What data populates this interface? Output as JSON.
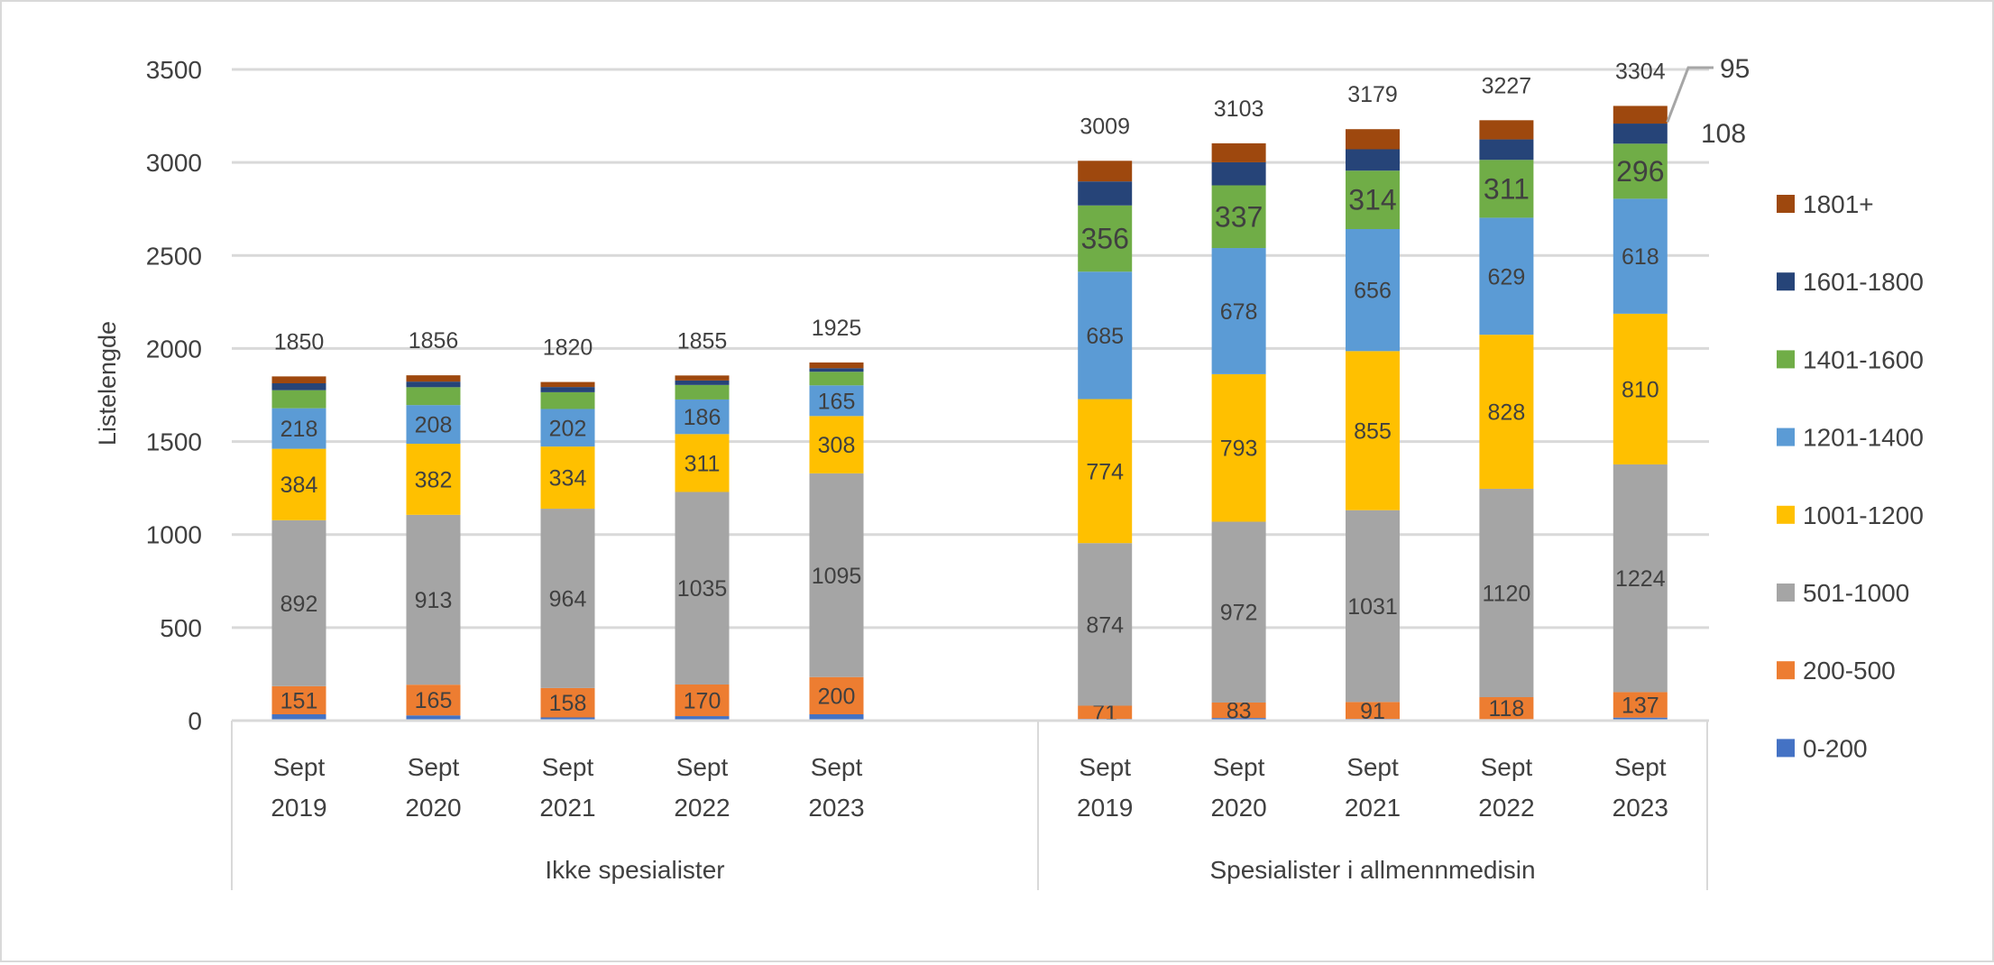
{
  "chart_data": {
    "type": "bar",
    "stacked": true,
    "title": "",
    "ylabel": "Listelengde",
    "xlabel": "",
    "ylim": [
      0,
      3500
    ],
    "yticks": [
      0,
      500,
      1000,
      1500,
      2000,
      2500,
      3000,
      3500
    ],
    "grid": true,
    "legend_position": "right",
    "groups": [
      {
        "label": "Ikke spesialister",
        "categories": [
          [
            "Sept",
            "2019"
          ],
          [
            "Sept",
            "2020"
          ],
          [
            "Sept",
            "2021"
          ],
          [
            "Sept",
            "2022"
          ],
          [
            "Sept",
            "2023"
          ]
        ],
        "totals": [
          1850,
          1856,
          1820,
          1855,
          1925
        ]
      },
      {
        "label": "Spesialister i allmennmedisin",
        "categories": [
          [
            "Sept",
            "2019"
          ],
          [
            "Sept",
            "2020"
          ],
          [
            "Sept",
            "2021"
          ],
          [
            "Sept",
            "2022"
          ],
          [
            "Sept",
            "2023"
          ]
        ],
        "totals": [
          3009,
          3103,
          3179,
          3227,
          3304
        ]
      }
    ],
    "series": [
      {
        "name": "0-200",
        "color": "#4472C4",
        "values": [
          [
            34,
            28,
            17,
            24,
            34
          ],
          [
            9,
            14,
            9,
            8,
            16
          ]
        ],
        "labels": [
          [
            null,
            null,
            null,
            null,
            null
          ],
          [
            null,
            null,
            null,
            null,
            null
          ]
        ]
      },
      {
        "name": "200-500",
        "color": "#ED7D31",
        "values": [
          [
            151,
            165,
            158,
            170,
            200
          ],
          [
            71,
            83,
            91,
            118,
            137
          ]
        ],
        "labels": [
          [
            "151",
            "165",
            "158",
            "170",
            "200"
          ],
          [
            "71",
            "83",
            "91",
            "118",
            "137"
          ]
        ]
      },
      {
        "name": "501-1000",
        "color": "#A5A5A5",
        "values": [
          [
            892,
            913,
            964,
            1035,
            1095
          ],
          [
            874,
            972,
            1031,
            1120,
            1224
          ]
        ],
        "labels": [
          [
            "892",
            "913",
            "964",
            "1035",
            "1095"
          ],
          [
            "874",
            "972",
            "1031",
            "1120",
            "1224"
          ]
        ]
      },
      {
        "name": "1001-1200",
        "color": "#FFC000",
        "values": [
          [
            384,
            382,
            334,
            311,
            308
          ],
          [
            774,
            793,
            855,
            828,
            810
          ]
        ],
        "labels": [
          [
            "384",
            "382",
            "334",
            "311",
            "308"
          ],
          [
            "774",
            "793",
            "855",
            "828",
            "810"
          ]
        ]
      },
      {
        "name": "1201-1400",
        "color": "#5B9BD5",
        "values": [
          [
            218,
            208,
            202,
            186,
            165
          ],
          [
            685,
            678,
            656,
            629,
            618
          ]
        ],
        "labels": [
          [
            "218",
            "208",
            "202",
            "186",
            "165"
          ],
          [
            "685",
            "678",
            "656",
            "629",
            "618"
          ]
        ]
      },
      {
        "name": "1401-1600",
        "color": "#70AD47",
        "values": [
          [
            97,
            96,
            90,
            78,
            73
          ],
          [
            356,
            337,
            314,
            311,
            296
          ]
        ],
        "labels": [
          [
            null,
            null,
            null,
            null,
            null
          ],
          [
            "356",
            "337",
            "314",
            "311",
            "296"
          ]
        ]
      },
      {
        "name": "1601-1800",
        "color": "#264478",
        "values": [
          [
            37,
            30,
            28,
            24,
            19
          ],
          [
            129,
            124,
            115,
            110,
            108
          ]
        ],
        "labels": [
          [
            null,
            null,
            null,
            null,
            null
          ],
          [
            null,
            null,
            null,
            null,
            "108"
          ]
        ]
      },
      {
        "name": "1801+",
        "color": "#9E480E",
        "values": [
          [
            37,
            34,
            27,
            27,
            31
          ],
          [
            111,
            102,
            108,
            103,
            95
          ]
        ],
        "labels": [
          [
            null,
            null,
            null,
            null,
            null
          ],
          [
            null,
            null,
            null,
            null,
            "95"
          ]
        ]
      }
    ]
  }
}
